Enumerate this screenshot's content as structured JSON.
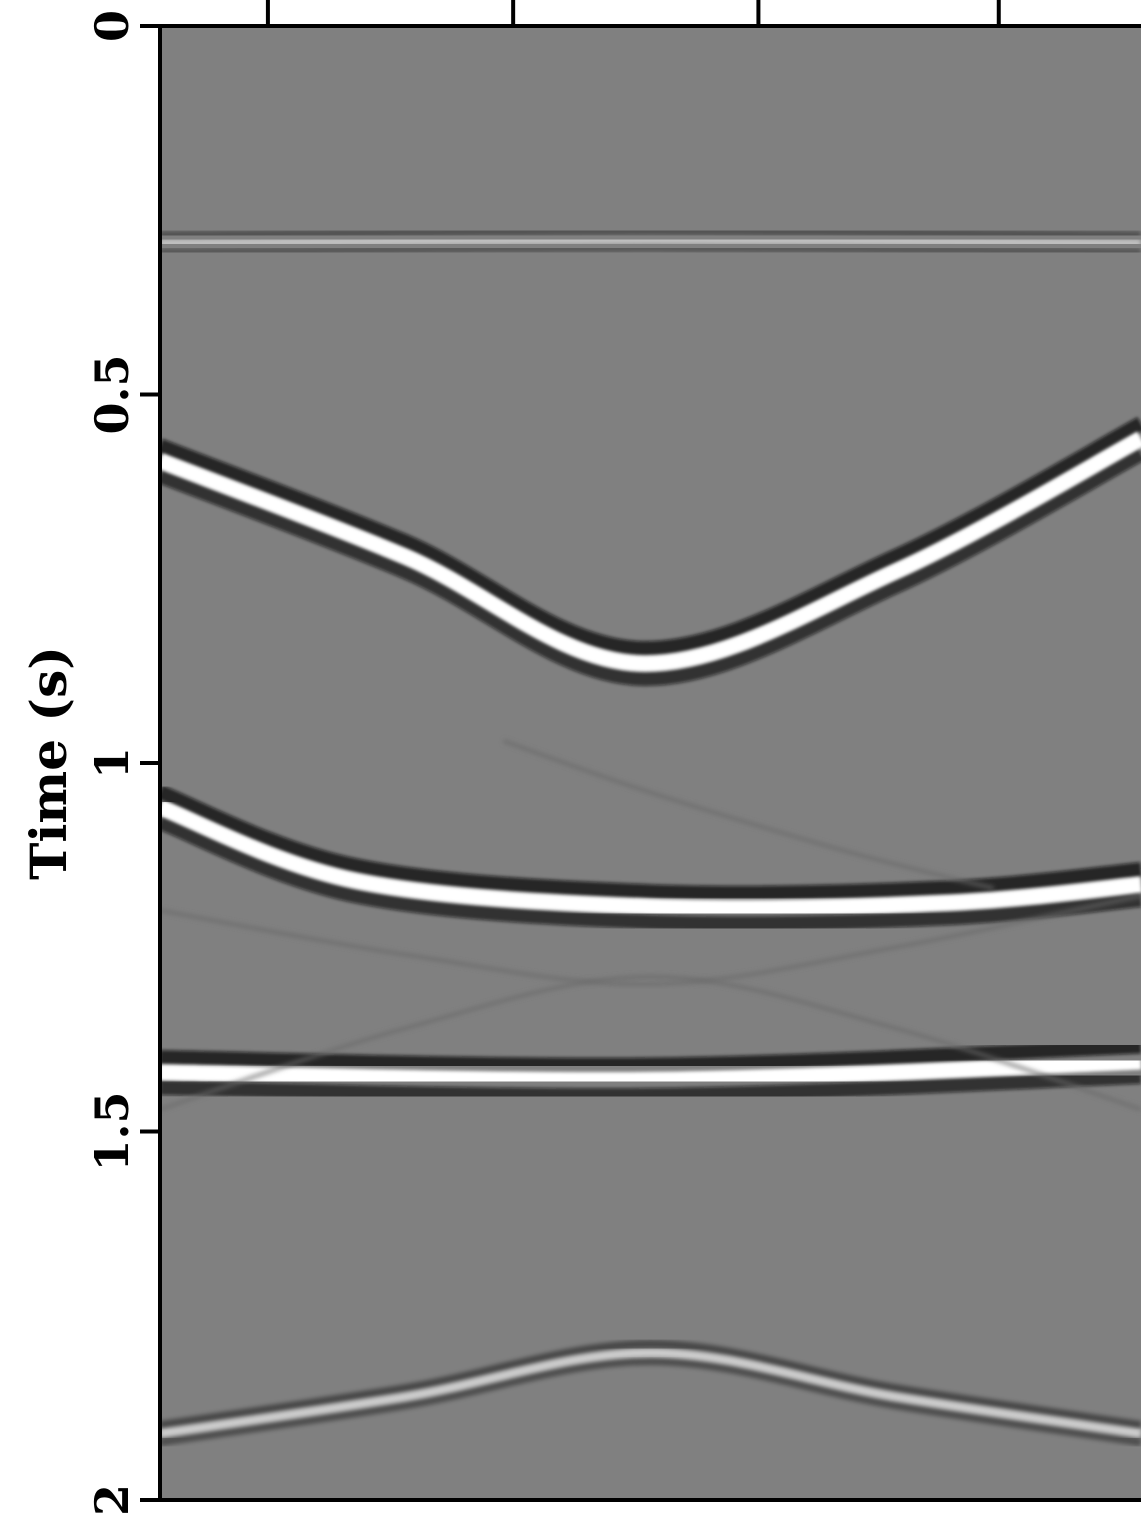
{
  "chart_data": {
    "type": "heatmap",
    "colormap": "grayscale (white = positive, black = negative)",
    "ylabel": "Time (s)",
    "xlabel": "",
    "ylim": [
      0,
      2
    ],
    "yticks": [
      {
        "value": 0,
        "label": "0"
      },
      {
        "value": 0.5,
        "label": "0.5"
      },
      {
        "value": 1,
        "label": "1"
      },
      {
        "value": 1.5,
        "label": "1.5"
      },
      {
        "value": 2,
        "label": "2"
      }
    ],
    "xlim": [
      0,
      1
    ],
    "xticks": [
      0.11,
      0.36,
      0.61,
      0.855
    ],
    "events": [
      {
        "kind": "flat",
        "t0": 0.29,
        "points": [
          [
            0.0,
            0.295
          ],
          [
            0.5,
            0.29
          ],
          [
            1.0,
            0.295
          ]
        ],
        "strength": 0.45
      },
      {
        "kind": "hyperbola",
        "apex_x": 0.49,
        "apex_t": 0.86,
        "points": [
          [
            0.0,
            0.59
          ],
          [
            0.25,
            0.72
          ],
          [
            0.49,
            0.865
          ],
          [
            0.75,
            0.74
          ],
          [
            1.0,
            0.56
          ]
        ],
        "strength": 1.0
      },
      {
        "kind": "curve",
        "points": [
          [
            0.0,
            1.06
          ],
          [
            0.2,
            1.16
          ],
          [
            0.5,
            1.195
          ],
          [
            0.8,
            1.19
          ],
          [
            1.0,
            1.165
          ]
        ],
        "strength": 1.0
      },
      {
        "kind": "flat",
        "points": [
          [
            0.0,
            1.42
          ],
          [
            0.5,
            1.43
          ],
          [
            1.0,
            1.405
          ]
        ],
        "strength": 1.0
      },
      {
        "kind": "diffraction",
        "apex_x": 0.5,
        "apex_t": 1.8,
        "points": [
          [
            0.0,
            1.91
          ],
          [
            0.25,
            1.86
          ],
          [
            0.5,
            1.8
          ],
          [
            0.75,
            1.86
          ],
          [
            1.0,
            1.91
          ]
        ],
        "strength": 0.55
      }
    ]
  }
}
